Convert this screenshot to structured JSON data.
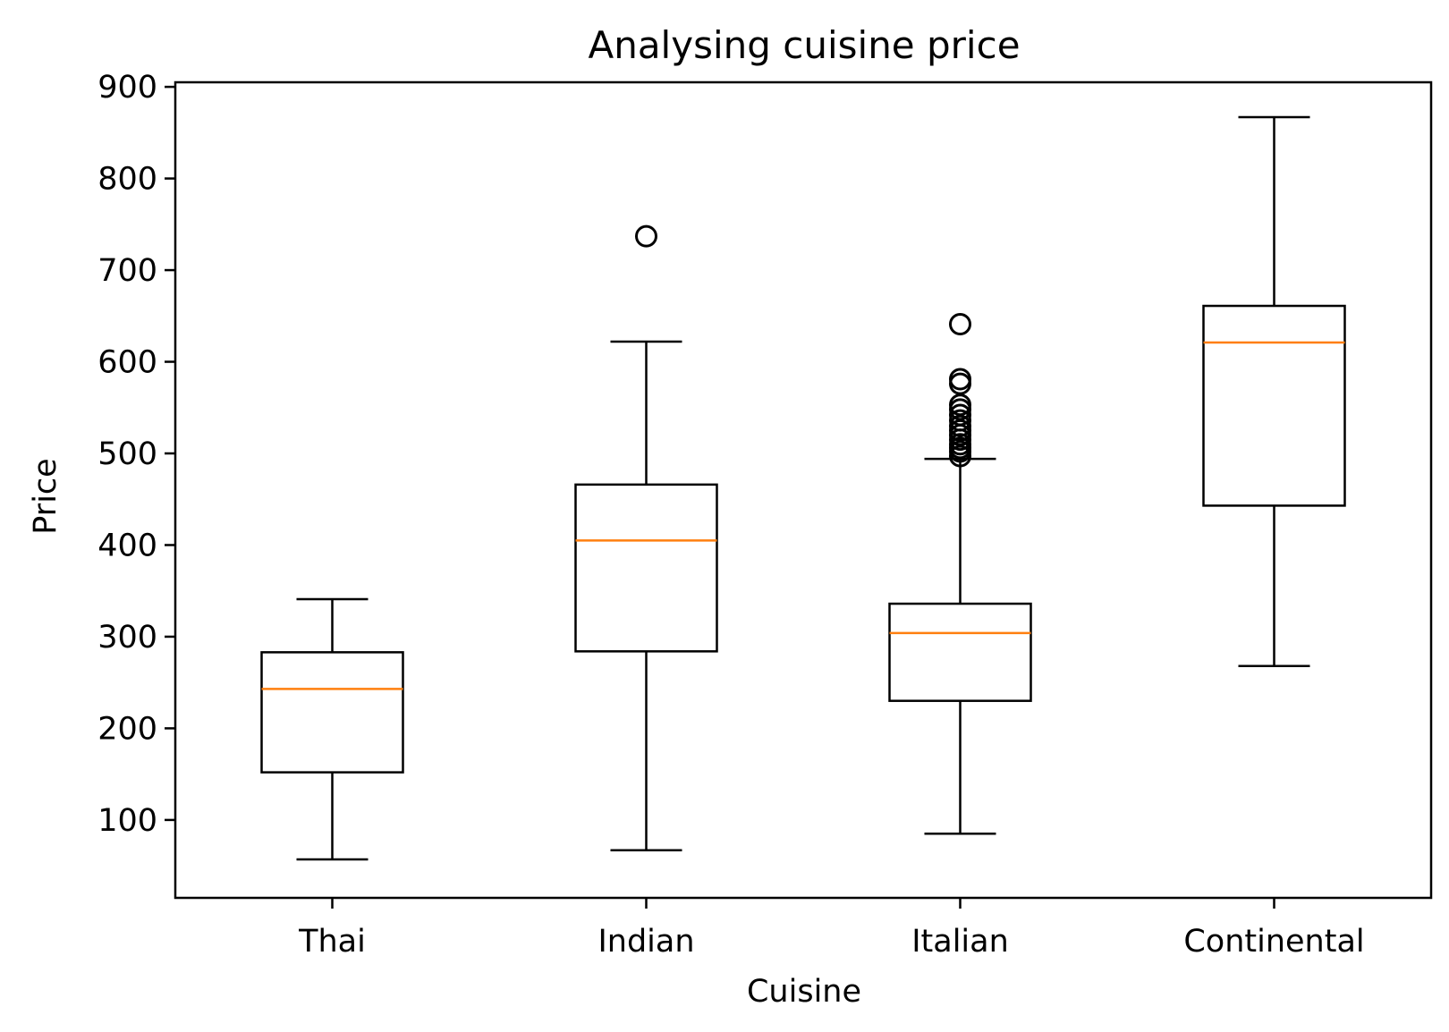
{
  "chart_data": {
    "type": "box",
    "title": "Analysing cuisine price",
    "xlabel": "Cuisine",
    "ylabel": "Price",
    "ylim": [
      15,
      905
    ],
    "yticks": [
      100,
      200,
      300,
      400,
      500,
      600,
      700,
      800,
      900
    ],
    "grid": false,
    "categories": [
      "Thai",
      "Indian",
      "Italian",
      "Continental"
    ],
    "boxes": [
      {
        "category": "Thai",
        "whisker_low": 57,
        "q1": 152,
        "median": 243,
        "q3": 283,
        "whisker_high": 341,
        "outliers": []
      },
      {
        "category": "Indian",
        "whisker_low": 67,
        "q1": 284,
        "median": 405,
        "q3": 466,
        "whisker_high": 622,
        "outliers": [
          737
        ]
      },
      {
        "category": "Italian",
        "whisker_low": 85,
        "q1": 230,
        "median": 304,
        "q3": 336,
        "whisker_high": 494,
        "outliers": [
          497,
          502,
          506,
          510,
          515,
          520,
          525,
          530,
          536,
          542,
          548,
          553,
          576,
          581,
          641
        ]
      },
      {
        "category": "Continental",
        "whisker_low": 268,
        "q1": 443,
        "median": 621,
        "q3": 661,
        "whisker_high": 867,
        "outliers": []
      }
    ],
    "colors": {
      "box": "#000000",
      "median": "#ff7f0e",
      "outlier": "#000000"
    }
  }
}
